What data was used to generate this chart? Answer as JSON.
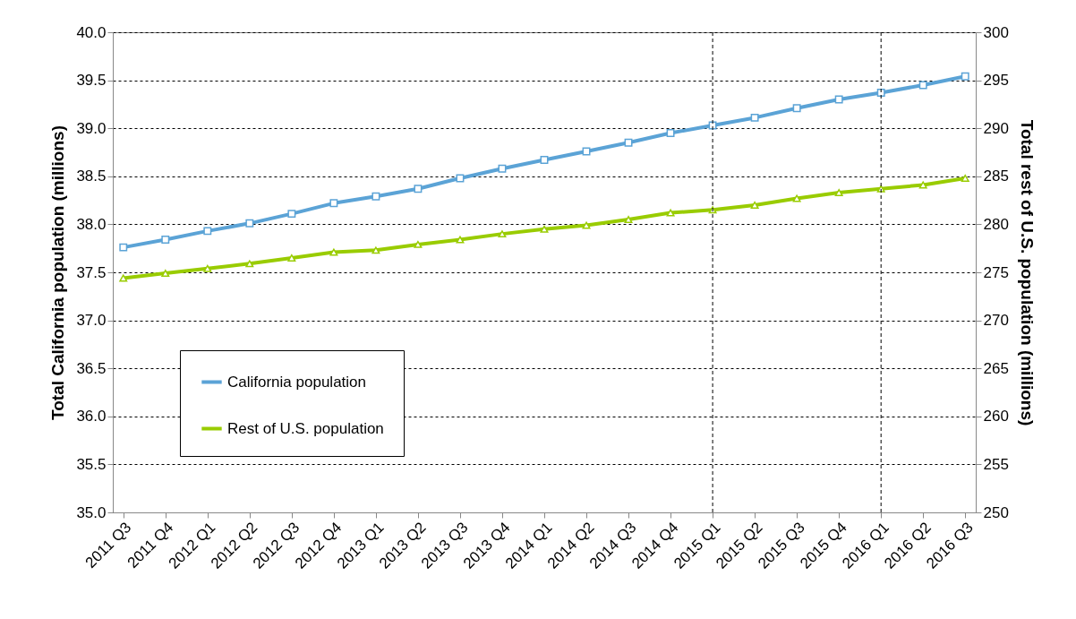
{
  "chart_data": {
    "type": "line",
    "ylabel": "Total California population (millions)",
    "y2label": "Total rest of U.S. population (millions)",
    "categories": [
      "2011 Q3",
      "2011 Q4",
      "2012 Q1",
      "2012 Q2",
      "2012 Q3",
      "2012 Q4",
      "2013 Q1",
      "2013 Q2",
      "2013 Q3",
      "2013 Q4",
      "2014 Q1",
      "2014 Q2",
      "2014 Q3",
      "2014 Q4",
      "2015 Q1",
      "2015 Q2",
      "2015 Q3",
      "2015 Q4",
      "2016 Q1",
      "2016 Q2",
      "2016 Q3"
    ],
    "series": [
      {
        "name": "California population",
        "color": "#5ba3d6",
        "marker": "square",
        "values": [
          37.76,
          37.84,
          37.93,
          38.01,
          38.11,
          38.22,
          38.29,
          38.37,
          38.48,
          38.58,
          38.67,
          38.76,
          38.85,
          38.95,
          39.03,
          39.11,
          39.21,
          39.3,
          39.37,
          39.45,
          39.54
        ]
      },
      {
        "name": "Rest of U.S. population",
        "color": "#99cc00",
        "marker": "triangle",
        "axis": "y2",
        "values": [
          274.4,
          274.9,
          275.4,
          275.9,
          276.5,
          277.1,
          277.3,
          277.9,
          278.4,
          279.0,
          279.5,
          279.9,
          280.5,
          281.2,
          281.5,
          282.0,
          282.7,
          283.3,
          283.7,
          284.1,
          284.8
        ]
      }
    ],
    "ylim": [
      35,
      40
    ],
    "yticks": [
      {
        "value": 35,
        "label": "35.0"
      },
      {
        "value": 35.5,
        "label": "35.5"
      },
      {
        "value": 36,
        "label": "36.0"
      },
      {
        "value": 36.5,
        "label": "36.5"
      },
      {
        "value": 37,
        "label": "37.0"
      },
      {
        "value": 37.5,
        "label": "37.5"
      },
      {
        "value": 38,
        "label": "38.0"
      },
      {
        "value": 38.5,
        "label": "38.5"
      },
      {
        "value": 39,
        "label": "39.0"
      },
      {
        "value": 39.5,
        "label": "39.5"
      },
      {
        "value": 40,
        "label": "40.0"
      }
    ],
    "y2lim": [
      250,
      300
    ],
    "y2ticks": [
      250,
      255,
      260,
      265,
      270,
      275,
      280,
      285,
      290,
      295,
      300
    ],
    "ref_lines": [
      {
        "axis": "x",
        "value": "2015 Q1",
        "line_style": "dashed",
        "color": "#000000"
      },
      {
        "axis": "x",
        "value": "2016 Q1",
        "line_style": "dashed",
        "color": "#000000"
      }
    ],
    "grid": "y",
    "legend": "left",
    "line_style": "solid"
  }
}
